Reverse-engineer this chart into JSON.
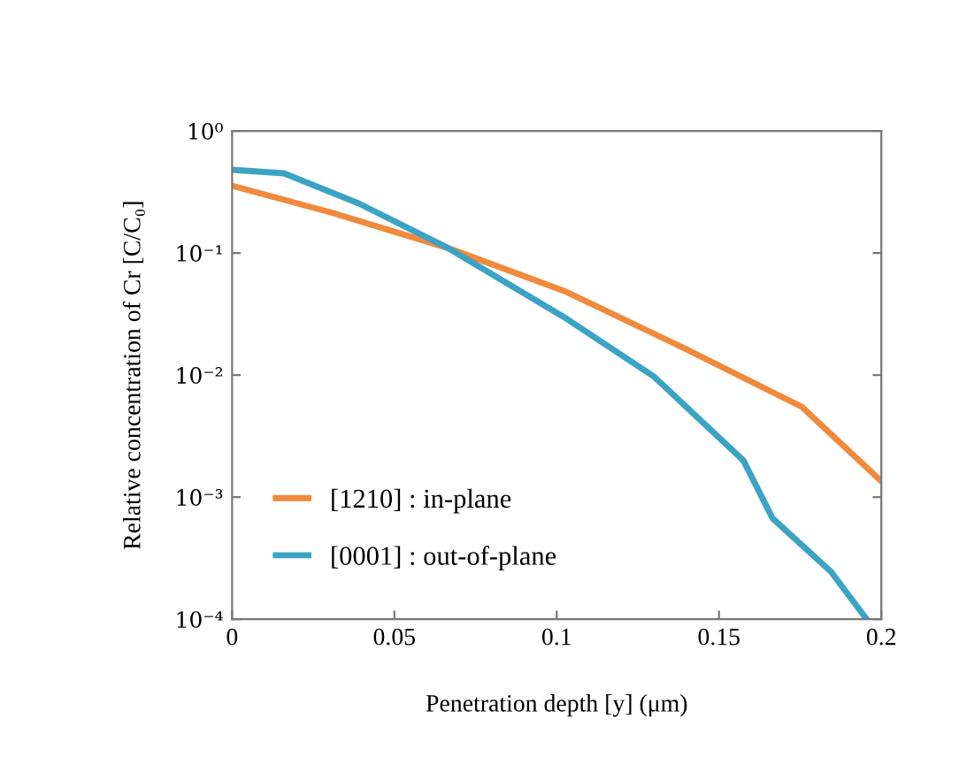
{
  "chart_data": {
    "type": "line",
    "xlabel": "Penetration depth [y] (μm)",
    "ylabel": "Relative concentration of Cr [C/C₀]",
    "log": "y",
    "xlim": [
      0,
      0.2
    ],
    "xticks": [
      0,
      0.05,
      0.1,
      0.15,
      0.2
    ],
    "ylim": [
      0.0001,
      1
    ],
    "yticks": [
      {
        "value": 0.0001,
        "label": "10⁻⁴"
      },
      {
        "value": 0.001,
        "label": "10⁻³"
      },
      {
        "value": 0.01,
        "label": "10⁻²"
      },
      {
        "value": 0.1,
        "label": "10⁻¹"
      },
      {
        "value": 1,
        "label": "10⁰"
      }
    ],
    "grid": false,
    "legend": "bottom left",
    "line_style": "solid",
    "marker": "none",
    "series": [
      {
        "name": "[1210] : in-plane",
        "color": "#f08a3c",
        "x": [
          0,
          0.0305,
          0.0665,
          0.103,
          0.1395,
          0.1755,
          0.2
        ],
        "values": [
          0.356,
          0.215,
          0.11,
          0.048,
          0.0165,
          0.0055,
          0.00135
        ]
      },
      {
        "name": "[0001] : out-of-plane",
        "color": "#3ba3c4",
        "x": [
          0,
          0.016,
          0.039,
          0.0665,
          0.103,
          0.13,
          0.1575,
          0.1665,
          0.1845,
          0.1955
        ],
        "values": [
          0.48,
          0.45,
          0.255,
          0.11,
          0.029,
          0.0097,
          0.002,
          0.00067,
          0.000245,
          0.0001
        ]
      }
    ]
  }
}
